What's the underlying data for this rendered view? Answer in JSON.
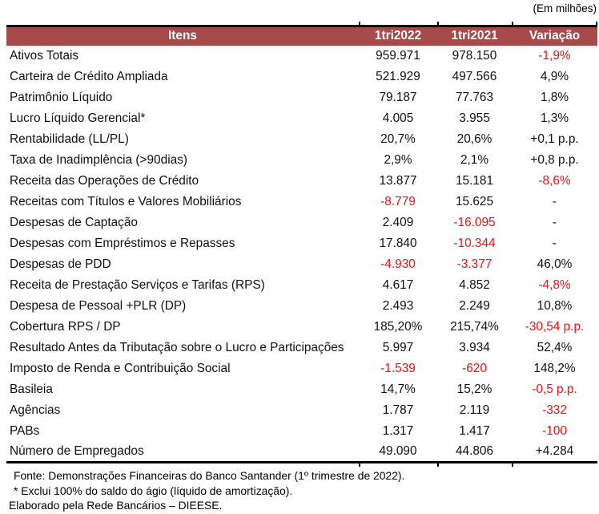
{
  "unit_label": "(Em milhões)",
  "colors": {
    "header_bg": "#A64A4A",
    "header_text": "#FFFFFF",
    "negative_text": "#FA0F0F",
    "body_text": "#111111",
    "border": "#000000"
  },
  "table": {
    "headers": [
      "Itens",
      "1tri2022",
      "1tri2021",
      "Variação"
    ],
    "rows": [
      {
        "item": "Ativos Totais",
        "q1_2022": "959.971",
        "q1_2021": "978.150",
        "variation": "-1,9%",
        "red": [
          "variation"
        ]
      },
      {
        "item": "Carteira de Crédito Ampliada",
        "q1_2022": "521.929",
        "q1_2021": "497.566",
        "variation": "4,9%",
        "red": []
      },
      {
        "item": "Patrimônio Líquido",
        "q1_2022": "79.187",
        "q1_2021": "77.763",
        "variation": "1,8%",
        "red": []
      },
      {
        "item": "Lucro Líquido Gerencial*",
        "q1_2022": "4.005",
        "q1_2021": "3.955",
        "variation": "1,3%",
        "red": []
      },
      {
        "item": "Rentabilidade (LL/PL)",
        "q1_2022": "20,7%",
        "q1_2021": "20,6%",
        "variation": "+0,1 p.p.",
        "red": []
      },
      {
        "item": "Taxa de Inadimplência (>90dias)",
        "q1_2022": "2,9%",
        "q1_2021": "2,1%",
        "variation": "+0,8 p.p.",
        "red": []
      },
      {
        "item": "Receita das Operações de Crédito",
        "q1_2022": "13.877",
        "q1_2021": "15.181",
        "variation": "-8,6%",
        "red": [
          "variation"
        ]
      },
      {
        "item": "Receitas com Títulos e Valores Mobiliários",
        "q1_2022": "-8.779",
        "q1_2021": "15.625",
        "variation": "-",
        "red": [
          "q1_2022"
        ]
      },
      {
        "item": "Despesas de Captação",
        "q1_2022": "2.409",
        "q1_2021": "-16.095",
        "variation": "-",
        "red": [
          "q1_2021"
        ]
      },
      {
        "item": "Despesas com Empréstimos e Repasses",
        "q1_2022": "17.840",
        "q1_2021": "-10.344",
        "variation": "-",
        "red": [
          "q1_2021"
        ]
      },
      {
        "item": "Despesas de PDD",
        "q1_2022": "-4.930",
        "q1_2021": "-3.377",
        "variation": "46,0%",
        "red": [
          "q1_2022",
          "q1_2021"
        ]
      },
      {
        "item": "Receita de Prestação Serviços e Tarifas (RPS)",
        "q1_2022": "4.617",
        "q1_2021": "4.852",
        "variation": "-4,8%",
        "red": [
          "variation"
        ]
      },
      {
        "item": "Despesa de Pessoal +PLR (DP)",
        "q1_2022": "2.493",
        "q1_2021": "2.249",
        "variation": "10,8%",
        "red": []
      },
      {
        "item": "Cobertura RPS / DP",
        "q1_2022": "185,20%",
        "q1_2021": "215,74%",
        "variation": "-30,54 p.p.",
        "red": [
          "variation"
        ]
      },
      {
        "item": "Resultado Antes da Tributação sobre o Lucro e Participações",
        "q1_2022": "5.997",
        "q1_2021": "3.934",
        "variation": "52,4%",
        "red": []
      },
      {
        "item": "Imposto de Renda e Contribuição Social",
        "q1_2022": "-1.539",
        "q1_2021": "-620",
        "variation": "148,2%",
        "red": [
          "q1_2022",
          "q1_2021"
        ]
      },
      {
        "item": "Basileia",
        "q1_2022": "14,7%",
        "q1_2021": "15,2%",
        "variation": "-0,5 p.p.",
        "red": [
          "variation"
        ]
      },
      {
        "item": "Agências",
        "q1_2022": "1.787",
        "q1_2021": "2.119",
        "variation": "-332",
        "red": [
          "variation"
        ]
      },
      {
        "item": "PABs",
        "q1_2022": "1.317",
        "q1_2021": "1.417",
        "variation": "-100",
        "red": [
          "variation"
        ]
      },
      {
        "item": "Número de Empregados",
        "q1_2022": "49.090",
        "q1_2021": "44.806",
        "variation": "+4.284",
        "red": []
      }
    ]
  },
  "footnotes": [
    "Fonte: Demonstrações Financeiras do Banco Santander (1º trimestre de 2022).",
    "* Exclui 100% do saldo do ágio (líquido de amortização).",
    "Elaborado pela Rede Bancários – DIEESE."
  ]
}
